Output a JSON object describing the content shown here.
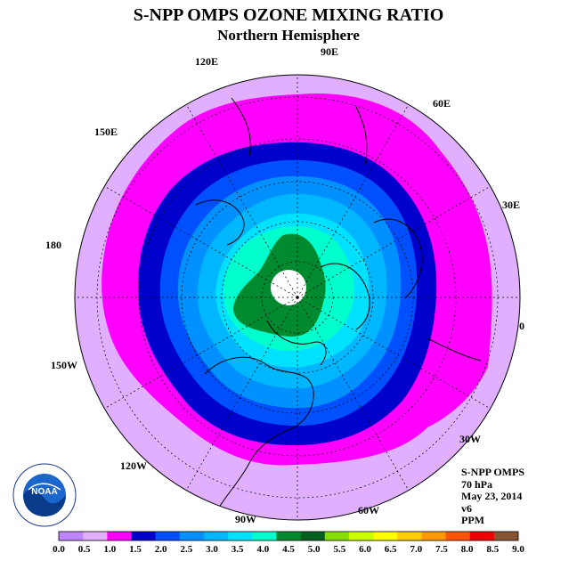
{
  "title": "S-NPP OMPS OZONE MIXING RATIO",
  "subtitle": "Northern Hemisphere",
  "info": {
    "instrument": "S-NPP OMPS",
    "level": "70 hPa",
    "date": "May 23, 2014",
    "version": "v6",
    "units": "PPM"
  },
  "logo": {
    "text": "NOAA",
    "ring_text": "NATIONAL OCEANIC AND ATMOSPHERIC ADMINISTRATION · U.S. DEPARTMENT OF COMMERCE"
  },
  "longitude_labels": [
    "90E",
    "60E",
    "30E",
    "0",
    "30W",
    "60W",
    "90W",
    "120W",
    "150W",
    "180",
    "150E",
    "120E"
  ],
  "chart_data": {
    "type": "heatmap",
    "title": "S-NPP OMPS OZONE MIXING RATIO",
    "subtitle": "Northern Hemisphere",
    "projection": "polar-stereographic-north",
    "units": "PPM",
    "colorbar": {
      "ticks": [
        "0.0",
        "0.5",
        "1.0",
        "1.5",
        "2.0",
        "2.5",
        "3.0",
        "3.5",
        "4.0",
        "4.5",
        "5.0",
        "5.5",
        "6.0",
        "6.5",
        "7.0",
        "7.5",
        "8.0",
        "8.5",
        "9.0"
      ],
      "colors": [
        "#c084ff",
        "#e0b0ff",
        "#ff00ff",
        "#0000cc",
        "#0050ff",
        "#0090ff",
        "#00b6ff",
        "#00e0ff",
        "#00ffcc",
        "#008a30",
        "#006020",
        "#88dd00",
        "#ccff00",
        "#ffff00",
        "#ffcc00",
        "#ff9900",
        "#ff5500",
        "#ee0000",
        "#885533"
      ]
    },
    "fields": [
      {
        "band": "1.0-1.5",
        "region": "outer ring, mid latitudes"
      },
      {
        "band": "1.5-2.0",
        "region": "annulus"
      },
      {
        "band": "4.0-4.5",
        "region": "polar region"
      },
      {
        "band": "4.5-5.0",
        "region": "near pole maximum"
      }
    ]
  }
}
